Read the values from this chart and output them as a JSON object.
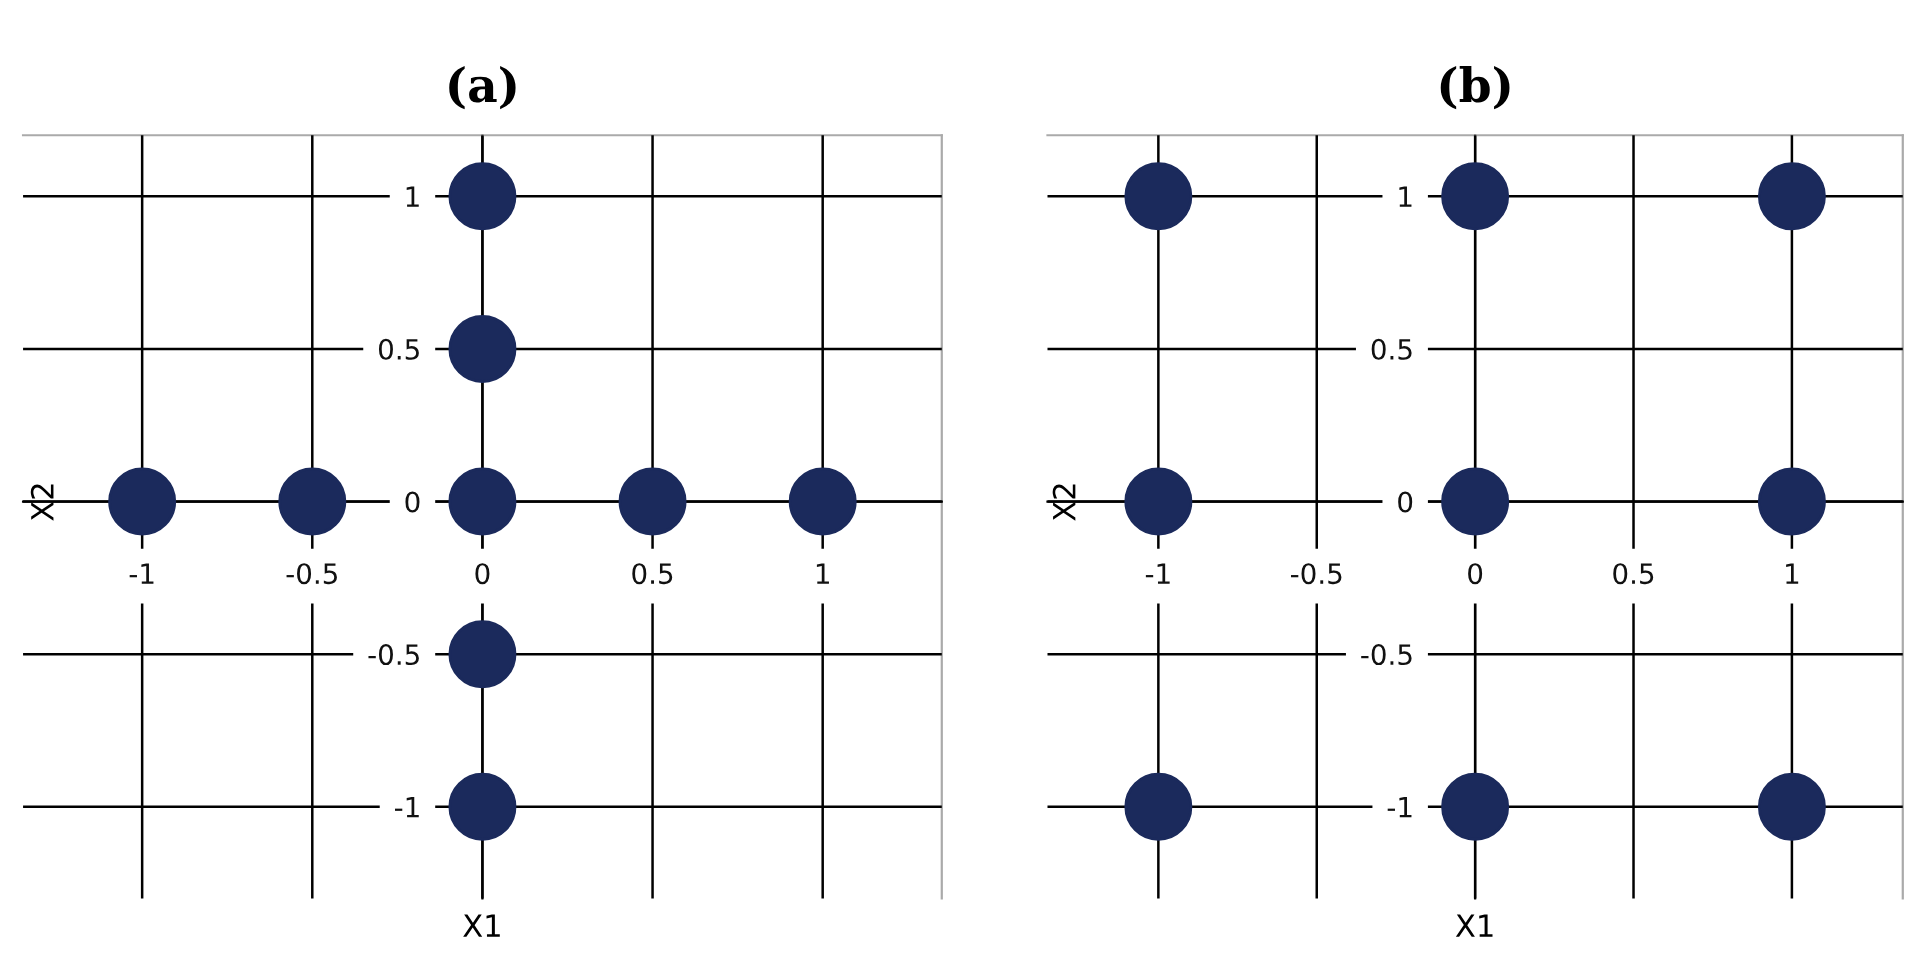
{
  "chart_data": [
    {
      "type": "scatter",
      "title": "(a)",
      "xlabel": "X1",
      "ylabel": "X2",
      "marker": "circle",
      "grid": true,
      "x": [
        0,
        0,
        -1,
        -0.5,
        0,
        0.5,
        1,
        0,
        0
      ],
      "series": [
        {
          "color": "#1b2a5c",
          "values": [
            1,
            0.5,
            0,
            0,
            0,
            0,
            0,
            -0.5,
            -1
          ]
        }
      ],
      "xlim": [
        -1.35,
        1.35
      ],
      "ylim": [
        -1.3,
        1.2
      ],
      "xticks": [
        -1,
        -0.5,
        0,
        0.5,
        1
      ],
      "yticks": [
        -1,
        -0.5,
        0,
        0.5,
        1
      ]
    },
    {
      "type": "scatter",
      "title": "(b)",
      "xlabel": "X1",
      "ylabel": "X2",
      "marker": "circle",
      "grid": true,
      "x": [
        -1,
        0,
        1,
        -1,
        0,
        1,
        -1,
        0,
        1
      ],
      "series": [
        {
          "color": "#1b2a5c",
          "values": [
            1,
            1,
            1,
            0,
            0,
            0,
            -1,
            -1,
            -1
          ]
        }
      ],
      "xlim": [
        -1.35,
        1.35
      ],
      "ylim": [
        -1.3,
        1.2
      ],
      "xticks": [
        -1,
        -0.5,
        0,
        0.5,
        1
      ],
      "yticks": [
        -1,
        -0.5,
        0,
        0.5,
        1
      ]
    }
  ]
}
